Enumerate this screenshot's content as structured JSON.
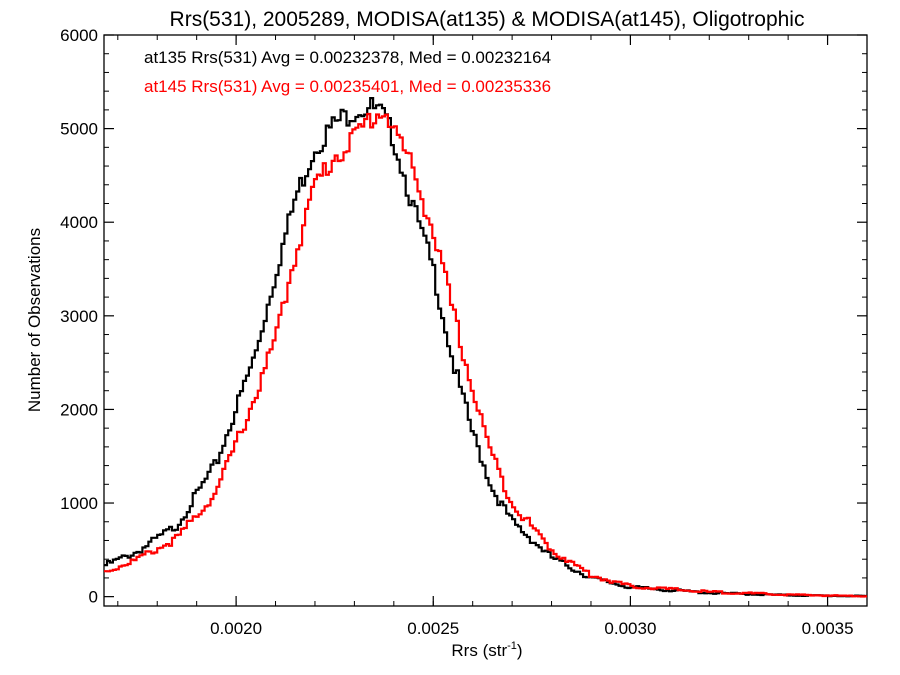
{
  "chart_data": {
    "type": "line",
    "step": true,
    "title": "Rrs(531), 2005289, MODISA(at135) & MODISA(at145), Oligotrophic",
    "xlabel": "Rrs (str",
    "xlabel_sup": "-1",
    "xlabel_close": ")",
    "ylabel": "Number of Observations",
    "xlim": [
      0.001665,
      0.0036
    ],
    "ylim": [
      -100,
      6000
    ],
    "xticks": [
      0.002,
      0.0025,
      0.003,
      0.0035
    ],
    "xtick_labels": [
      "0.0020",
      "0.0025",
      "0.0030",
      "0.0035"
    ],
    "yticks": [
      0,
      1000,
      2000,
      3000,
      4000,
      5000,
      6000
    ],
    "ytick_labels": [
      "0",
      "1000",
      "2000",
      "3000",
      "4000",
      "5000",
      "6000"
    ],
    "grid": false,
    "legend": "top-left",
    "series": [
      {
        "name": "at135 Rrs(531) Avg = 0.00232378, Med = 0.00232164",
        "color": "#000000",
        "points": [
          [
            0.001665,
            330
          ],
          [
            0.00175,
            480
          ],
          [
            0.00185,
            760
          ],
          [
            0.00195,
            1420
          ],
          [
            0.00205,
            2600
          ],
          [
            0.0021,
            3450
          ],
          [
            0.00215,
            4250
          ],
          [
            0.0022,
            4800
          ],
          [
            0.00225,
            5050
          ],
          [
            0.0023,
            5200
          ],
          [
            0.00234,
            5230
          ],
          [
            0.00237,
            5150
          ],
          [
            0.0024,
            4900
          ],
          [
            0.00245,
            4150
          ],
          [
            0.0025,
            3500
          ],
          [
            0.00255,
            2500
          ],
          [
            0.0026,
            1750
          ],
          [
            0.00265,
            1150
          ],
          [
            0.0027,
            800
          ],
          [
            0.0028,
            420
          ],
          [
            0.0029,
            200
          ],
          [
            0.003,
            100
          ],
          [
            0.0032,
            40
          ],
          [
            0.0034,
            15
          ],
          [
            0.0036,
            5
          ]
        ]
      },
      {
        "name": "at145 Rrs(531) Avg = 0.00235401, Med = 0.00235336",
        "color": "#ff0000",
        "points": [
          [
            0.001665,
            260
          ],
          [
            0.00175,
            400
          ],
          [
            0.00185,
            620
          ],
          [
            0.00195,
            1120
          ],
          [
            0.00205,
            2150
          ],
          [
            0.0021,
            2750
          ],
          [
            0.00215,
            3650
          ],
          [
            0.0022,
            4400
          ],
          [
            0.00225,
            4700
          ],
          [
            0.0023,
            4900
          ],
          [
            0.00235,
            5150
          ],
          [
            0.00238,
            5180
          ],
          [
            0.0024,
            5000
          ],
          [
            0.00245,
            4550
          ],
          [
            0.0025,
            3900
          ],
          [
            0.00255,
            3050
          ],
          [
            0.0026,
            2200
          ],
          [
            0.00265,
            1500
          ],
          [
            0.0027,
            1000
          ],
          [
            0.0028,
            500
          ],
          [
            0.0029,
            230
          ],
          [
            0.003,
            110
          ],
          [
            0.0032,
            50
          ],
          [
            0.0034,
            20
          ],
          [
            0.0036,
            5
          ]
        ]
      }
    ]
  }
}
